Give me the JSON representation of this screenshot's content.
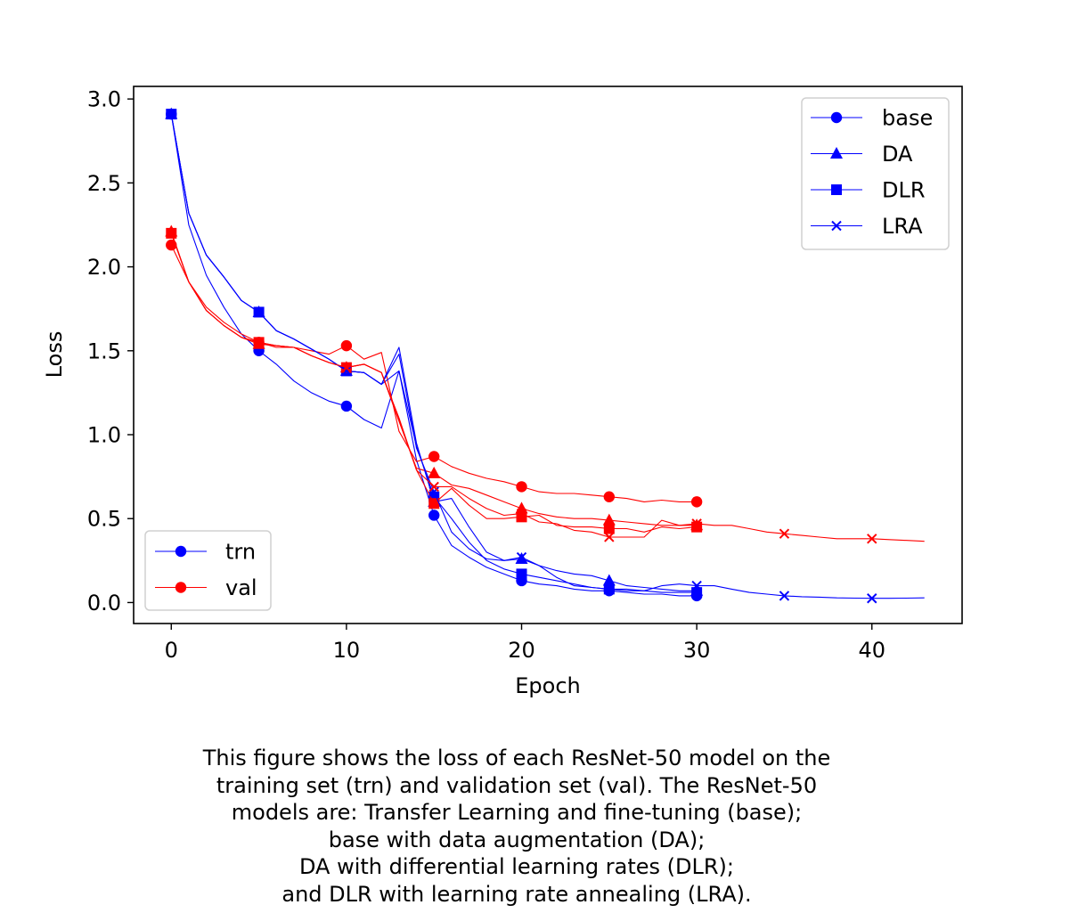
{
  "chart_data": {
    "type": "line",
    "xlabel": "Epoch",
    "ylabel": "Loss",
    "xlim": [
      -2.15,
      45.15
    ],
    "ylim": [
      -0.125,
      3.075
    ],
    "xticks": [
      0,
      10,
      20,
      30,
      40
    ],
    "yticks": [
      0.0,
      0.5,
      1.0,
      1.5,
      2.0,
      2.5,
      3.0
    ],
    "xtick_labels": [
      "0",
      "10",
      "20",
      "30",
      "40"
    ],
    "ytick_labels": [
      "0.0",
      "0.5",
      "1.0",
      "1.5",
      "2.0",
      "2.5",
      "3.0"
    ],
    "grid": false,
    "marker_every": 5,
    "model_legend": {
      "placement": "top-right",
      "entries": [
        {
          "label": "base",
          "marker": "circle"
        },
        {
          "label": "DA",
          "marker": "triangle"
        },
        {
          "label": "DLR",
          "marker": "square"
        },
        {
          "label": "LRA",
          "marker": "x"
        }
      ]
    },
    "set_legend": {
      "placement": "bottom-left",
      "entries": [
        {
          "label": "trn",
          "color": "#0000ff"
        },
        {
          "label": "val",
          "color": "#ff0000"
        }
      ]
    },
    "series": [
      {
        "model": "base",
        "set": "trn",
        "marker": "circle",
        "color": "#0000ff",
        "x": [
          0,
          1,
          2,
          3,
          4,
          5,
          6,
          7,
          8,
          9,
          10,
          11,
          12,
          13,
          14,
          15,
          16,
          17,
          18,
          19,
          20,
          21,
          22,
          23,
          24,
          25,
          26,
          27,
          28,
          29,
          30
        ],
        "y": [
          2.91,
          2.25,
          1.95,
          1.76,
          1.6,
          1.5,
          1.42,
          1.32,
          1.25,
          1.2,
          1.17,
          1.09,
          1.04,
          1.38,
          0.85,
          0.52,
          0.34,
          0.27,
          0.21,
          0.17,
          0.13,
          0.11,
          0.1,
          0.08,
          0.07,
          0.07,
          0.06,
          0.05,
          0.05,
          0.04,
          0.04
        ]
      },
      {
        "model": "base",
        "set": "val",
        "marker": "circle",
        "color": "#ff0000",
        "x": [
          0,
          1,
          2,
          3,
          4,
          5,
          6,
          7,
          8,
          9,
          10,
          11,
          12,
          13,
          14,
          15,
          16,
          17,
          18,
          19,
          20,
          21,
          22,
          23,
          24,
          25,
          26,
          27,
          28,
          29,
          30
        ],
        "y": [
          2.13,
          1.91,
          1.76,
          1.67,
          1.6,
          1.55,
          1.52,
          1.52,
          1.5,
          1.48,
          1.53,
          1.45,
          1.49,
          1.02,
          0.84,
          0.87,
          0.81,
          0.77,
          0.74,
          0.72,
          0.69,
          0.66,
          0.65,
          0.65,
          0.64,
          0.63,
          0.62,
          0.6,
          0.61,
          0.6,
          0.6
        ]
      },
      {
        "model": "DA",
        "set": "trn",
        "marker": "triangle",
        "color": "#0000ff",
        "x": [
          0,
          1,
          2,
          3,
          4,
          5,
          6,
          7,
          8,
          9,
          10,
          11,
          12,
          13,
          14,
          15,
          16,
          17,
          18,
          19,
          20,
          21,
          22,
          23,
          24,
          25,
          26,
          27,
          28,
          29,
          30
        ],
        "y": [
          2.91,
          2.32,
          2.07,
          1.94,
          1.8,
          1.73,
          1.62,
          1.57,
          1.51,
          1.45,
          1.38,
          1.37,
          1.3,
          1.52,
          0.95,
          0.6,
          0.62,
          0.45,
          0.3,
          0.25,
          0.26,
          0.22,
          0.19,
          0.17,
          0.16,
          0.13,
          0.1,
          0.09,
          0.08,
          0.07,
          0.07
        ]
      },
      {
        "model": "DA",
        "set": "val",
        "marker": "triangle",
        "color": "#ff0000",
        "x": [
          0,
          1,
          2,
          3,
          4,
          5,
          6,
          7,
          8,
          9,
          10,
          11,
          12,
          13,
          14,
          15,
          16,
          17,
          18,
          19,
          20,
          21,
          22,
          23,
          24,
          25,
          26,
          27,
          28,
          29,
          30
        ],
        "y": [
          2.21,
          1.91,
          1.74,
          1.65,
          1.58,
          1.54,
          1.53,
          1.52,
          1.47,
          1.43,
          1.4,
          1.42,
          1.37,
          1.08,
          0.8,
          0.77,
          0.7,
          0.68,
          0.64,
          0.6,
          0.56,
          0.53,
          0.51,
          0.5,
          0.5,
          0.49,
          0.48,
          0.47,
          0.46,
          0.46,
          0.46
        ]
      },
      {
        "model": "DLR",
        "set": "trn",
        "marker": "square",
        "color": "#0000ff",
        "x": [
          0,
          1,
          2,
          3,
          4,
          5,
          6,
          7,
          8,
          9,
          10,
          11,
          12,
          13,
          14,
          15,
          16,
          17,
          18,
          19,
          20,
          21,
          22,
          23,
          24,
          25,
          26,
          27,
          28,
          29,
          30
        ],
        "y": [
          2.91,
          2.32,
          2.07,
          1.94,
          1.8,
          1.73,
          1.62,
          1.57,
          1.51,
          1.45,
          1.38,
          1.37,
          1.3,
          1.38,
          0.93,
          0.63,
          0.5,
          0.36,
          0.25,
          0.2,
          0.17,
          0.15,
          0.13,
          0.11,
          0.09,
          0.08,
          0.08,
          0.07,
          0.06,
          0.06,
          0.06
        ]
      },
      {
        "model": "DLR",
        "set": "val",
        "marker": "square",
        "color": "#ff0000",
        "x": [
          0,
          1,
          2,
          3,
          4,
          5,
          6,
          7,
          8,
          9,
          10,
          11,
          12,
          13,
          14,
          15,
          16,
          17,
          18,
          19,
          20,
          21,
          22,
          23,
          24,
          25,
          26,
          27,
          28,
          29,
          30
        ],
        "y": [
          2.2,
          1.91,
          1.74,
          1.65,
          1.58,
          1.55,
          1.53,
          1.52,
          1.47,
          1.43,
          1.4,
          1.42,
          1.37,
          1.1,
          0.79,
          0.59,
          0.68,
          0.58,
          0.5,
          0.5,
          0.51,
          0.52,
          0.46,
          0.45,
          0.45,
          0.44,
          0.44,
          0.42,
          0.45,
          0.44,
          0.45
        ]
      },
      {
        "model": "LRA",
        "set": "trn",
        "marker": "x",
        "color": "#0000ff",
        "x": [
          0,
          1,
          2,
          3,
          4,
          5,
          6,
          7,
          8,
          9,
          10,
          11,
          12,
          13,
          14,
          15,
          16,
          17,
          18,
          19,
          20,
          21,
          22,
          23,
          24,
          25,
          26,
          27,
          28,
          29,
          30,
          31,
          32,
          33,
          34,
          35,
          36,
          37,
          38,
          39,
          40,
          41,
          42,
          43
        ],
        "y": [
          2.91,
          2.32,
          2.07,
          1.94,
          1.8,
          1.73,
          1.62,
          1.57,
          1.51,
          1.45,
          1.38,
          1.37,
          1.3,
          1.48,
          0.92,
          0.66,
          0.42,
          0.32,
          0.26,
          0.25,
          0.27,
          0.22,
          0.15,
          0.1,
          0.09,
          0.08,
          0.07,
          0.07,
          0.1,
          0.11,
          0.1,
          0.1,
          0.08,
          0.06,
          0.05,
          0.04,
          0.035,
          0.032,
          0.028,
          0.026,
          0.025,
          0.025,
          0.026,
          0.028
        ]
      },
      {
        "model": "LRA",
        "set": "val",
        "marker": "x",
        "color": "#ff0000",
        "x": [
          0,
          1,
          2,
          3,
          4,
          5,
          6,
          7,
          8,
          9,
          10,
          11,
          12,
          13,
          14,
          15,
          16,
          17,
          18,
          19,
          20,
          21,
          22,
          23,
          24,
          25,
          26,
          27,
          28,
          29,
          30,
          31,
          32,
          33,
          34,
          35,
          36,
          37,
          38,
          39,
          40,
          41,
          42,
          43
        ],
        "y": [
          2.2,
          1.91,
          1.74,
          1.65,
          1.58,
          1.55,
          1.53,
          1.52,
          1.47,
          1.43,
          1.4,
          1.42,
          1.37,
          1.09,
          0.79,
          0.69,
          0.69,
          0.62,
          0.56,
          0.52,
          0.53,
          0.48,
          0.47,
          0.43,
          0.42,
          0.39,
          0.39,
          0.39,
          0.49,
          0.46,
          0.47,
          0.46,
          0.46,
          0.44,
          0.42,
          0.41,
          0.4,
          0.39,
          0.38,
          0.38,
          0.38,
          0.375,
          0.37,
          0.365
        ]
      }
    ]
  },
  "caption": {
    "lines": [
      "This figure shows the loss of each ResNet-50 model on the",
      "training set (trn) and validation set (val). The ResNet-50",
      "models are: Transfer Learning and fine-tuning (base);",
      "base with data augmentation (DA);",
      "DA with differential learning rates (DLR);",
      "and DLR with learning rate annealing (LRA)."
    ]
  }
}
